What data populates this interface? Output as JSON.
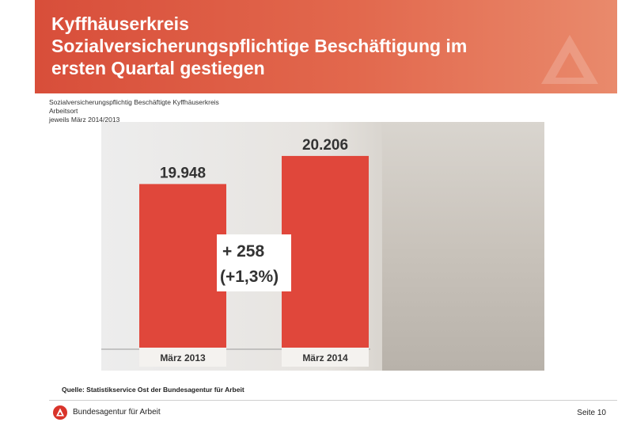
{
  "header": {
    "title_line1": "Kyffhäuserkreis",
    "title_line2": "Sozialversicherungspflichtige Beschäftigung im",
    "title_line3": "ersten Quartal gestiegen"
  },
  "subtitle": {
    "line1": "Sozialversicherungspflichtig Beschäftigte Kyffhäuserkreis",
    "line2": "Arbeitsort",
    "line3": "jeweils März 2014/2013"
  },
  "chart_data": {
    "type": "bar",
    "categories": [
      "März 2013",
      "März 2014"
    ],
    "values": [
      19948,
      20206
    ],
    "value_labels": [
      "19.948",
      "20.206"
    ],
    "title": "",
    "xlabel": "",
    "ylabel": "",
    "annotation": {
      "line1": "+ 258",
      "line2": "(+1,3%)"
    },
    "grid": false,
    "bar_color": "#e0473b"
  },
  "footer": {
    "source": "Quelle: Statistikservice Ost der Bundesagentur für Arbeit",
    "brand": "Bundesagentur für Arbeit",
    "page": "Seite 10"
  },
  "colors": {
    "banner": "#d84e3a",
    "bar": "#e0473b",
    "logo": "#d9342b"
  }
}
